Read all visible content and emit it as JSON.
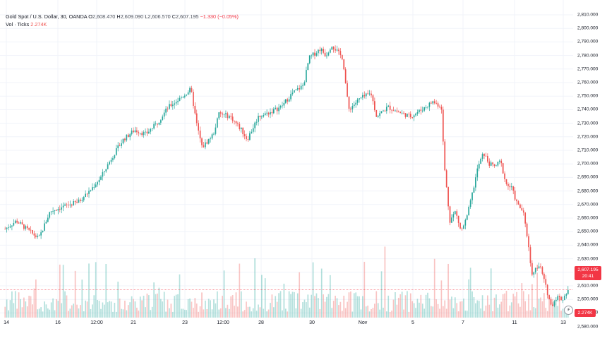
{
  "legend": {
    "symbol": "Gold Spot / U.S. Dollar, 30, OANDA",
    "open_label": "O",
    "open": "2,608.470",
    "high_label": "H",
    "high": "2,609.090",
    "low_label": "L",
    "low": "2,606.570",
    "close_label": "C",
    "close": "2,607.195",
    "change": "−1.330 (−0.05%)",
    "volume_label": "Vol · Ticks",
    "volume_value": "2.274K"
  },
  "price_axis": {
    "labels": [
      "2,810.000",
      "2,800.000",
      "2,790.000",
      "2,780.000",
      "2,770.000",
      "2,760.000",
      "2,750.000",
      "2,740.000",
      "2,730.000",
      "2,720.000",
      "2,710.000",
      "2,700.000",
      "2,690.000",
      "2,680.000",
      "2,670.000",
      "2,660.000",
      "2,650.000",
      "2,640.000",
      "2,630.000",
      "2,620.000",
      "2,610.000",
      "2,600.000",
      "2,590.000",
      "2,580.000"
    ]
  },
  "time_axis": {
    "labels": [
      "14",
      "16",
      "12:00",
      "21",
      "23",
      "12:00",
      "28",
      "30",
      "Nov",
      "5",
      "7",
      "11",
      "13"
    ]
  },
  "current_price": {
    "price": "2,607.195",
    "countdown": "20:41"
  },
  "volume_tag": "2.274K",
  "colors": {
    "up": "#26a69a",
    "down": "#ef5350",
    "price_line": "#f23645",
    "grid": "#f0f3fa"
  },
  "chart_data": {
    "type": "candlestick",
    "symbol": "Gold Spot / U.S. Dollar",
    "interval": "30",
    "ylim": [
      2575,
      2815
    ],
    "x_ticks": [
      "14",
      "16",
      "12:00",
      "21",
      "23",
      "12:00",
      "28",
      "30",
      "Nov",
      "5",
      "7",
      "11",
      "13"
    ],
    "path_close": [
      [
        0,
        2652
      ],
      [
        0.02,
        2658
      ],
      [
        0.05,
        2648
      ],
      [
        0.06,
        2645
      ],
      [
        0.08,
        2665
      ],
      [
        0.1,
        2668
      ],
      [
        0.13,
        2672
      ],
      [
        0.15,
        2680
      ],
      [
        0.17,
        2690
      ],
      [
        0.19,
        2705
      ],
      [
        0.21,
        2718
      ],
      [
        0.23,
        2725
      ],
      [
        0.25,
        2722
      ],
      [
        0.27,
        2730
      ],
      [
        0.29,
        2742
      ],
      [
        0.31,
        2748
      ],
      [
        0.33,
        2755
      ],
      [
        0.34,
        2730
      ],
      [
        0.35,
        2712
      ],
      [
        0.37,
        2722
      ],
      [
        0.38,
        2737
      ],
      [
        0.4,
        2735
      ],
      [
        0.42,
        2725
      ],
      [
        0.43,
        2718
      ],
      [
        0.45,
        2735
      ],
      [
        0.47,
        2738
      ],
      [
        0.49,
        2742
      ],
      [
        0.51,
        2752
      ],
      [
        0.53,
        2758
      ],
      [
        0.54,
        2778
      ],
      [
        0.56,
        2785
      ],
      [
        0.57,
        2780
      ],
      [
        0.58,
        2788
      ],
      [
        0.59,
        2783
      ],
      [
        0.6,
        2778
      ],
      [
        0.61,
        2740
      ],
      [
        0.63,
        2748
      ],
      [
        0.65,
        2752
      ],
      [
        0.66,
        2735
      ],
      [
        0.68,
        2742
      ],
      [
        0.7,
        2738
      ],
      [
        0.72,
        2735
      ],
      [
        0.74,
        2740
      ],
      [
        0.76,
        2746
      ],
      [
        0.775,
        2742
      ],
      [
        0.78,
        2700
      ],
      [
        0.79,
        2658
      ],
      [
        0.8,
        2665
      ],
      [
        0.81,
        2650
      ],
      [
        0.82,
        2660
      ],
      [
        0.83,
        2678
      ],
      [
        0.84,
        2698
      ],
      [
        0.85,
        2708
      ],
      [
        0.86,
        2700
      ],
      [
        0.87,
        2698
      ],
      [
        0.88,
        2702
      ],
      [
        0.89,
        2685
      ],
      [
        0.9,
        2682
      ],
      [
        0.91,
        2670
      ],
      [
        0.92,
        2665
      ],
      [
        0.93,
        2640
      ],
      [
        0.935,
        2618
      ],
      [
        0.94,
        2622
      ],
      [
        0.95,
        2625
      ],
      [
        0.96,
        2610
      ],
      [
        0.97,
        2595
      ],
      [
        0.98,
        2602
      ],
      [
        0.99,
        2600
      ],
      [
        1.0,
        2607
      ]
    ]
  }
}
